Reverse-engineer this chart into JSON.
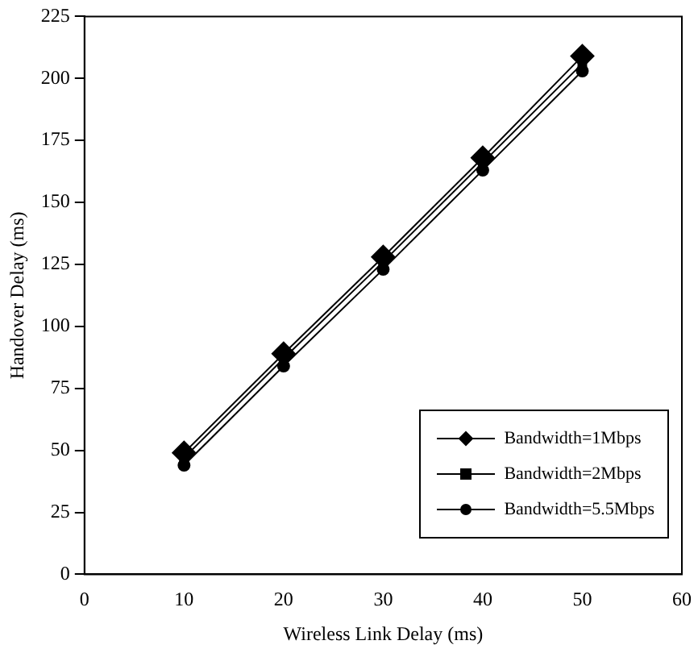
{
  "chart_data": {
    "type": "line",
    "xlabel": "Wireless Link Delay (ms)",
    "ylabel": "Handover Delay (ms)",
    "x": [
      10,
      20,
      30,
      40,
      50
    ],
    "series": [
      {
        "name": "Bandwidth=1Mbps",
        "color": "#000000",
        "marker": "diamond",
        "values": [
          49,
          89,
          128,
          168,
          209
        ]
      },
      {
        "name": "Bandwidth=2Mbps",
        "color": "#000000",
        "marker": "square",
        "values": [
          47,
          87,
          126,
          166,
          206
        ]
      },
      {
        "name": "Bandwidth=5.5Mbps",
        "color": "#000000",
        "marker": "circle",
        "values": [
          44,
          84,
          123,
          163,
          203
        ]
      }
    ],
    "xlim": [
      0,
      60
    ],
    "xticks": [
      0,
      10,
      20,
      30,
      40,
      50,
      60
    ],
    "ylim": [
      0,
      225
    ],
    "yticks": [
      0,
      25,
      50,
      75,
      100,
      125,
      150,
      175,
      200,
      225
    ],
    "grid": false,
    "legend": "bottom right",
    "line_style": "solid"
  }
}
